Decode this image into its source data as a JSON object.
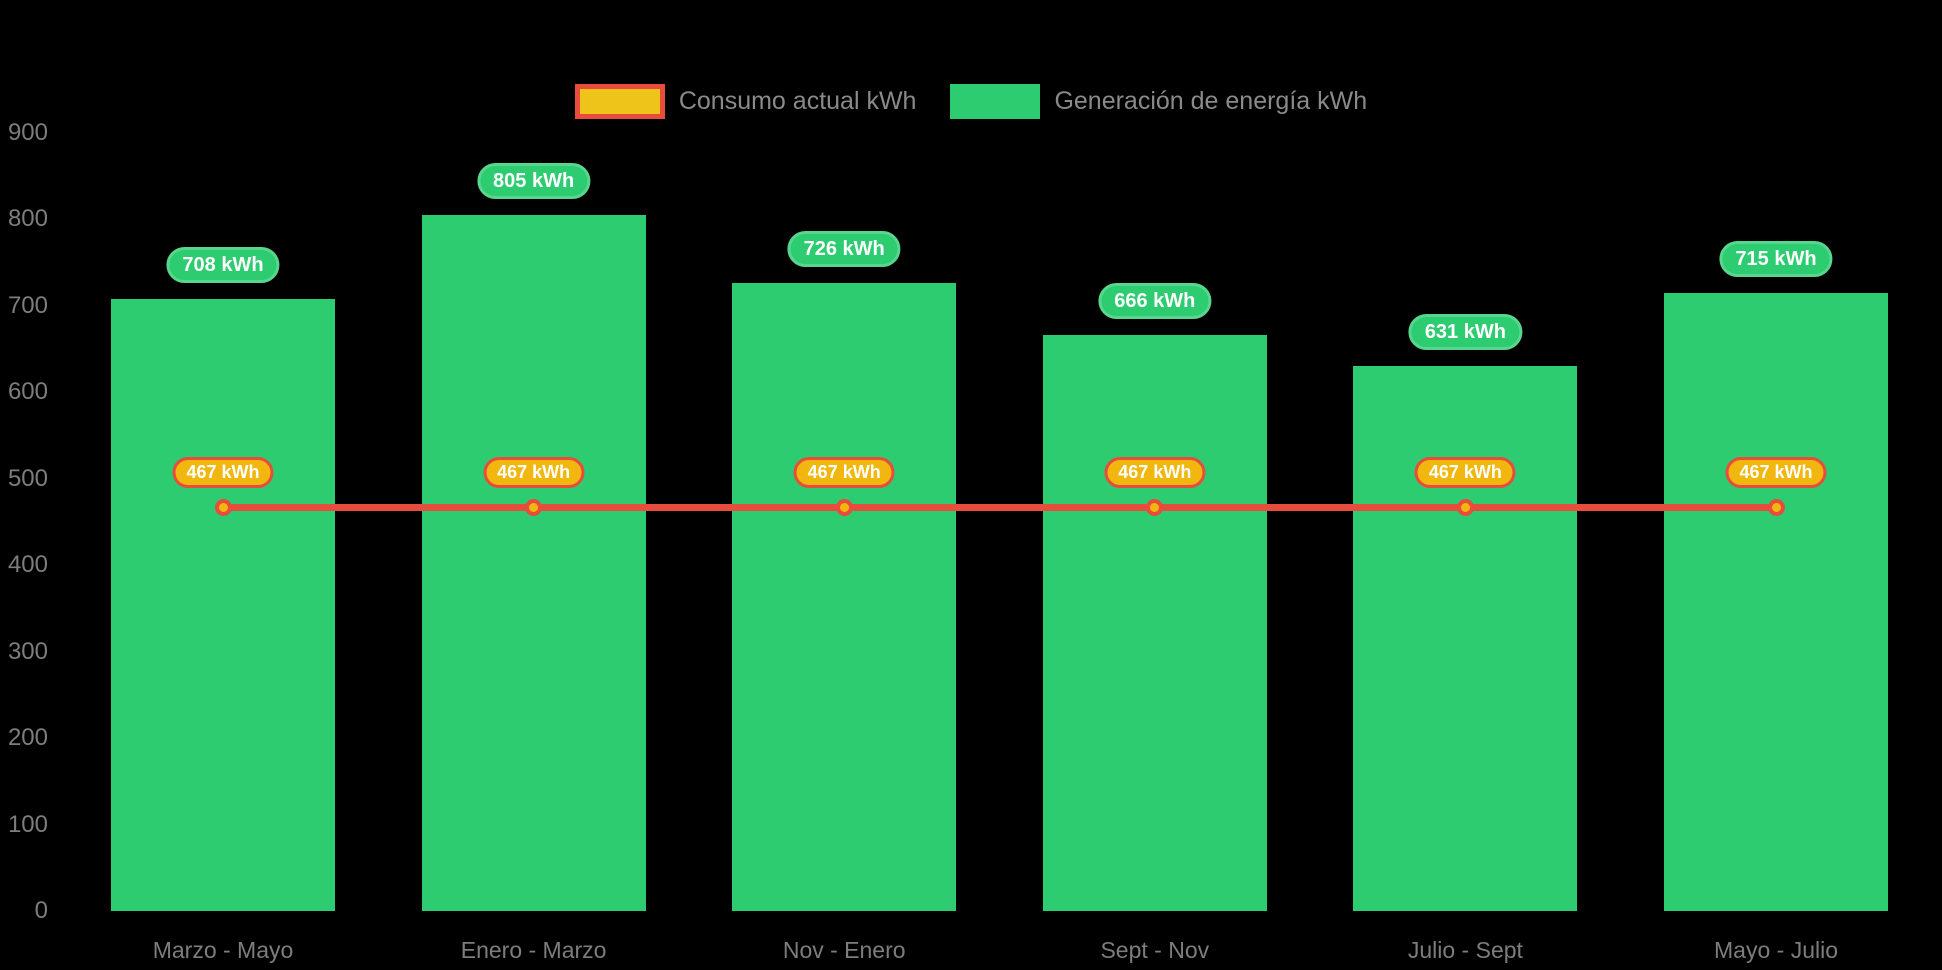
{
  "chart_data": {
    "type": "bar",
    "categories": [
      "Marzo - Mayo",
      "Enero - Marzo",
      "Nov - Enero",
      "Sept - Nov",
      "Julio - Sept",
      "Mayo - Julio"
    ],
    "series": [
      {
        "name": "Consumo actual kWh",
        "type": "line",
        "values": [
          467,
          467,
          467,
          467,
          467,
          467
        ],
        "labels": [
          "467 kWh",
          "467 kWh",
          "467 kWh",
          "467 kWh",
          "467 kWh",
          "467 kWh"
        ],
        "line_color": "#e74c3c",
        "marker_fill": "#f1b70e",
        "marker_border": "#e74c3c",
        "label_bg": "#f1b70e",
        "label_border": "#e74c3c",
        "label_text_color": "#ffffff",
        "legend_swatch_fill": "#eec31a",
        "legend_swatch_border": "#e74c3c"
      },
      {
        "name": "Generación de energía kWh",
        "type": "bar",
        "values": [
          708,
          805,
          726,
          666,
          631,
          715
        ],
        "labels": [
          "708 kWh",
          "805 kWh",
          "726 kWh",
          "666 kWh",
          "631 kWh",
          "715 kWh"
        ],
        "bar_color": "#2ecc71",
        "label_bg": "#2ecc71",
        "label_border": "#58d68d",
        "label_text_color": "#ffffff"
      }
    ],
    "title": "",
    "xlabel": "",
    "ylabel": "",
    "ylim": [
      0,
      900
    ],
    "yticks": [
      0,
      100,
      200,
      300,
      400,
      500,
      600,
      700,
      800,
      900
    ],
    "grid": false,
    "legend_position": "top-center",
    "background": "#000000",
    "axis_text_color": "#7d7d7d",
    "legend_text_color": "#8a8a8a"
  }
}
